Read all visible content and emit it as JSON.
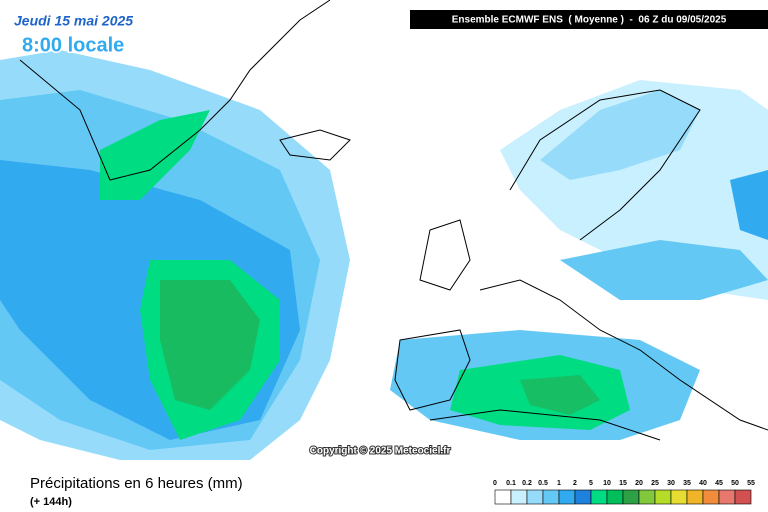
{
  "header": {
    "date": "Jeudi 15 mai 2025",
    "time": "8:00 locale",
    "run": "Ensemble ECMWF ENS  ( Moyenne )  -  06 Z du 09/05/2025"
  },
  "copyright": "Copyright © 2025 Meteociel.fr",
  "footer": {
    "title": "Précipitations en 6 heures (mm)",
    "lead": "(+ 144h)"
  },
  "legend": {
    "ticks": [
      0,
      0.1,
      0.2,
      0.5,
      1,
      2,
      5,
      10,
      15,
      20,
      25,
      30,
      35,
      40,
      45,
      50,
      55
    ],
    "colors": [
      "#ffffff",
      "#c8f0ff",
      "#96dcfa",
      "#64c8f5",
      "#32aaf0",
      "#1e82dc",
      "#00dc82",
      "#00be5a",
      "#2ea046",
      "#82c83c",
      "#b4dc28",
      "#e6dc32",
      "#f0b428",
      "#f08c3c",
      "#e6786e",
      "#d25050"
    ]
  }
}
